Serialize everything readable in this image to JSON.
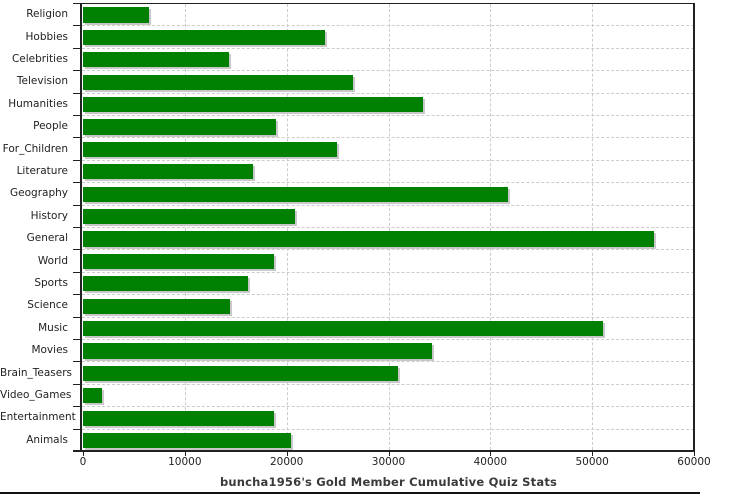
{
  "chart_data": {
    "type": "bar",
    "orientation": "horizontal",
    "title": "buncha1956's Gold Member Cumulative Quiz Stats",
    "categories": [
      "Religion",
      "Hobbies",
      "Celebrities",
      "Television",
      "Humanities",
      "People",
      "For_Children",
      "Literature",
      "Geography",
      "History",
      "General",
      "World",
      "Sports",
      "Science",
      "Music",
      "Movies",
      "Brain_Teasers",
      "Video_Games",
      "Entertainment",
      "Animals"
    ],
    "values": [
      6500,
      23800,
      14300,
      26500,
      33400,
      19000,
      24900,
      16700,
      41700,
      20800,
      56100,
      18800,
      16200,
      14400,
      51100,
      34300,
      30900,
      1900,
      18800,
      20400
    ],
    "xlabel": "",
    "ylabel": "",
    "xlim": [
      0,
      60000
    ],
    "x_ticks": [
      0,
      10000,
      20000,
      30000,
      40000,
      50000,
      60000
    ],
    "x_tick_labels": [
      "0",
      "10000",
      "20000",
      "30000",
      "40000",
      "50000",
      "60000"
    ],
    "grid": "dashed vertical at value ticks and horizontal at category boundaries",
    "legend": "none",
    "colors": {
      "bar": "#008000",
      "bar_shadow": "#c8c8c8",
      "gridline": "#cccccc",
      "axis": "#222222",
      "label_text": "#222222",
      "title_text": "#3a3a3a",
      "background": "#ffffff",
      "bottom_rule": "#111111"
    }
  }
}
